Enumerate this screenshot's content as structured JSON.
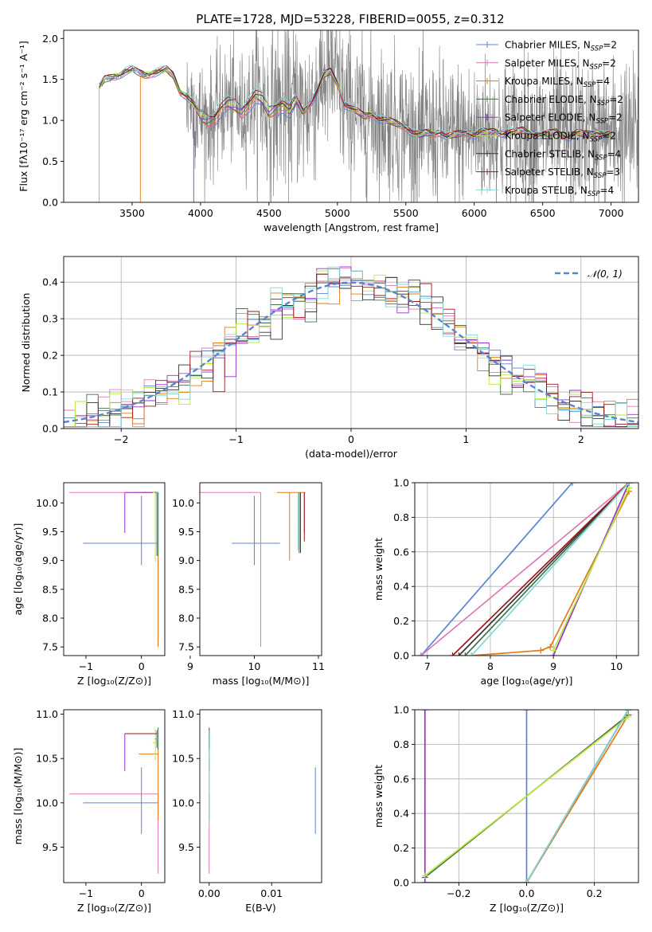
{
  "figure": {
    "title": "PLATE=1728, MJD=53228, FIBERID=0055, z=0.312"
  },
  "models": [
    {
      "key": "chab_miles",
      "name": "Chabrier MILES",
      "nssp": "2",
      "color": "#5a84d2"
    },
    {
      "key": "salp_miles",
      "name": "Salpeter MILES",
      "nssp": "2",
      "color": "#e079b8"
    },
    {
      "key": "krou_miles",
      "name": "Kroupa MILES",
      "nssp": "4",
      "color": "#e37b14"
    },
    {
      "key": "chab_elodie",
      "name": "Chabrier ELODIE",
      "nssp": "2",
      "color": "#4a6e4a"
    },
    {
      "key": "salp_elodie",
      "name": "Salpeter ELODIE",
      "nssp": "2",
      "color": "#9932cc"
    },
    {
      "key": "krou_elodie",
      "name": "Kroupa ELODIE",
      "nssp": "2",
      "color": "#b7e83e"
    },
    {
      "key": "chab_stelib",
      "name": "Chabrier STELIB",
      "nssp": "4",
      "color": "#333333"
    },
    {
      "key": "salp_stelib",
      "name": "Salpeter STELIB",
      "nssp": "3",
      "color": "#a0161c"
    },
    {
      "key": "krou_stelib",
      "name": "Kroupa STELIB",
      "nssp": "4",
      "color": "#7fd8d8"
    }
  ],
  "chart_data": [
    {
      "id": "spectrum",
      "type": "line",
      "title": "PLATE=1728, MJD=53228, FIBERID=0055, z=0.312",
      "xlabel": "wavelength [Angstrom, rest frame]",
      "ylabel": "Flux [fλ10⁻¹⁷ erg cm⁻² s⁻¹ A⁻¹]",
      "xlim": [
        3000,
        7200
      ],
      "ylim": [
        0,
        2.1
      ],
      "xticks": [
        3500,
        4000,
        4500,
        5000,
        5500,
        6000,
        6500,
        7000
      ],
      "yticks": [
        0.0,
        0.5,
        1.0,
        1.5,
        2.0
      ],
      "grid": false,
      "legend": "upper-right",
      "data_color": "#808080",
      "model_x": [
        3260,
        3300,
        3400,
        3450,
        3500,
        3550,
        3600,
        3650,
        3700,
        3750,
        3800,
        3850,
        3900,
        3950,
        4000,
        4050,
        4100,
        4150,
        4200,
        4250,
        4300,
        4350,
        4400,
        4450,
        4500,
        4550,
        4600,
        4650,
        4700,
        4750,
        4800,
        4850,
        4900,
        4950,
        5000,
        5050,
        5100,
        5150,
        5200,
        5250,
        5300,
        5350,
        5400,
        5450,
        5500,
        5550,
        5600,
        5650,
        5700,
        5750,
        5800,
        5850,
        5900,
        5950,
        6000,
        6050,
        6100,
        6150,
        6200,
        6250,
        6300,
        6350,
        6400,
        6450,
        6500,
        6550,
        6600,
        6650,
        6700,
        6750,
        6800,
        6850,
        6900,
        6950,
        7000
      ],
      "model_y": [
        1.4,
        1.5,
        1.55,
        1.6,
        1.62,
        1.58,
        1.55,
        1.58,
        1.6,
        1.62,
        1.55,
        1.35,
        1.3,
        1.2,
        1.05,
        1.0,
        1.02,
        1.15,
        1.2,
        1.18,
        1.1,
        1.2,
        1.3,
        1.25,
        1.1,
        1.15,
        1.2,
        1.1,
        1.25,
        1.1,
        1.2,
        1.35,
        1.55,
        1.6,
        1.45,
        1.2,
        1.15,
        1.1,
        1.05,
        1.08,
        1.02,
        1.0,
        0.98,
        0.95,
        0.92,
        0.85,
        0.82,
        0.85,
        0.83,
        0.86,
        0.8,
        0.82,
        0.84,
        0.85,
        0.82,
        0.86,
        0.85,
        0.87,
        0.84,
        0.86,
        0.85,
        0.88,
        0.85,
        0.83,
        0.82,
        0.84,
        0.86,
        0.82,
        0.8,
        0.85,
        0.83,
        0.84,
        0.86,
        0.82,
        0.83
      ]
    },
    {
      "id": "residuals",
      "type": "histogram",
      "xlabel": "(data-model)/error",
      "ylabel": "Normed distribution",
      "xlim": [
        -2.5,
        2.5
      ],
      "ylim": [
        0,
        0.47
      ],
      "xticks": [
        -2,
        -1,
        0,
        1,
        2
      ],
      "yticks": [
        0.0,
        0.1,
        0.2,
        0.3,
        0.4
      ],
      "grid": true,
      "bin_width": 0.1,
      "legend": "upper-right",
      "reference": {
        "label": "𝒩(0, 1)",
        "mean": 0,
        "sigma": 1,
        "color": "#5a84d2"
      }
    },
    {
      "id": "age-vs-Z",
      "type": "errorbar",
      "xlabel": "Z [log₁₀(Z/Z⊙)]",
      "ylabel": "age  [log₁₀(age/yr)]",
      "xlim": [
        -1.4,
        0.42
      ],
      "ylim": [
        7.35,
        10.35
      ],
      "xticks": [
        -1,
        0
      ],
      "yticks": [
        7.5,
        8.0,
        8.5,
        9.0,
        9.5,
        10.0
      ],
      "grid": false,
      "points": [
        {
          "model": "chab_miles",
          "x": 0.0,
          "xerr": [
            1.05,
            0.3
          ],
          "y": 9.3,
          "yerr": [
            0.38,
            0.82
          ]
        },
        {
          "model": "salp_miles",
          "x": 0.3,
          "xerr": [
            1.6,
            0.0
          ],
          "y": 10.18,
          "yerr": [
            2.68,
            0.0
          ]
        },
        {
          "model": "krou_miles",
          "x": 0.3,
          "xerr": [
            0.35,
            0.0
          ],
          "y": 10.18,
          "yerr": [
            2.68,
            0.0
          ]
        },
        {
          "model": "chab_elodie",
          "x": 0.3,
          "xerr": [
            0.02,
            0.0
          ],
          "y": 10.18,
          "yerr": [
            1.1,
            0.0
          ]
        },
        {
          "model": "salp_elodie",
          "x": -0.3,
          "xerr": [
            0.0,
            0.6
          ],
          "y": 10.18,
          "yerr": [
            0.7,
            0.0
          ]
        },
        {
          "model": "krou_elodie",
          "x": 0.25,
          "xerr": [
            0.05,
            0.05
          ],
          "y": 10.18,
          "yerr": [
            1.2,
            0.0
          ]
        },
        {
          "model": "chab_stelib",
          "x": 0.28,
          "xerr": [
            0.03,
            0.02
          ],
          "y": 10.18,
          "yerr": [
            1.1,
            0.0
          ]
        },
        {
          "model": "salp_stelib",
          "x": 0.3,
          "xerr": [
            0.05,
            0.0
          ],
          "y": 10.18,
          "yerr": [
            0.0,
            0.0
          ]
        },
        {
          "model": "krou_stelib",
          "x": 0.29,
          "xerr": [
            0.03,
            0.01
          ],
          "y": 10.18,
          "yerr": [
            1.1,
            0.0
          ]
        }
      ]
    },
    {
      "id": "age-vs-mass",
      "type": "errorbar",
      "xlabel": "mass [log₁₀(M/M⊙)]",
      "ylabel": "",
      "xlim": [
        9.15,
        11.05
      ],
      "ylim": [
        7.35,
        10.35
      ],
      "xticks": [
        9,
        10,
        11
      ],
      "yticks": [
        7.5,
        8.0,
        8.5,
        9.0,
        9.5,
        10.0
      ],
      "grid": false,
      "points": [
        {
          "model": "chab_miles",
          "x": 10.0,
          "xerr": [
            0.35,
            0.4
          ],
          "y": 9.3,
          "yerr": [
            0.38,
            0.82
          ]
        },
        {
          "model": "salp_miles",
          "x": 10.1,
          "xerr": [
            0.95,
            0.0
          ],
          "y": 10.18,
          "yerr": [
            2.68,
            0.0
          ]
        },
        {
          "model": "krou_miles",
          "x": 10.55,
          "xerr": [
            0.2,
            0.25
          ],
          "y": 10.18,
          "yerr": [
            1.18,
            0.0
          ]
        },
        {
          "model": "chab_elodie",
          "x": 10.7,
          "xerr": [
            0.0,
            0.0
          ],
          "y": 10.18,
          "yerr": [
            1.05,
            0.0
          ]
        },
        {
          "model": "salp_elodie",
          "x": 10.78,
          "xerr": [
            0.0,
            0.0
          ],
          "y": 10.18,
          "yerr": [
            0.7,
            0.0
          ]
        },
        {
          "model": "krou_elodie",
          "x": 10.72,
          "xerr": [
            0.0,
            0.0
          ],
          "y": 10.18,
          "yerr": [
            1.0,
            0.0
          ]
        },
        {
          "model": "chab_stelib",
          "x": 10.72,
          "xerr": [
            0.0,
            0.0
          ],
          "y": 10.18,
          "yerr": [
            1.05,
            0.0
          ]
        },
        {
          "model": "salp_stelib",
          "x": 10.78,
          "xerr": [
            0.0,
            0.0
          ],
          "y": 10.18,
          "yerr": [
            0.85,
            0.0
          ]
        },
        {
          "model": "krou_stelib",
          "x": 10.68,
          "xerr": [
            0.0,
            0.0
          ],
          "y": 10.18,
          "yerr": [
            1.0,
            0.0
          ]
        }
      ]
    },
    {
      "id": "weight-vs-age",
      "type": "line",
      "xlabel": "age  [log₁₀(age/yr)]",
      "ylabel": "mass weight",
      "xlim": [
        6.8,
        10.35
      ],
      "ylim": [
        0,
        1
      ],
      "xticks": [
        7,
        8,
        9,
        10
      ],
      "yticks": [
        0.0,
        0.2,
        0.4,
        0.6,
        0.8,
        1.0
      ],
      "grid": true,
      "series": [
        {
          "model": "chab_miles",
          "x": [
            6.9,
            9.3
          ],
          "y": [
            0.0,
            1.0
          ]
        },
        {
          "model": "salp_miles",
          "x": [
            6.9,
            10.2
          ],
          "y": [
            0.0,
            1.0
          ]
        },
        {
          "model": "krou_miles",
          "x": [
            7.7,
            8.8,
            8.95,
            10.2
          ],
          "y": [
            0.0,
            0.03,
            0.05,
            0.95
          ]
        },
        {
          "model": "chab_elodie",
          "x": [
            7.6,
            10.2
          ],
          "y": [
            0.0,
            1.0
          ]
        },
        {
          "model": "salp_elodie",
          "x": [
            9.0,
            10.2
          ],
          "y": [
            0.0,
            1.0
          ]
        },
        {
          "model": "krou_elodie",
          "x": [
            9.0,
            10.2
          ],
          "y": [
            0.03,
            0.97
          ]
        },
        {
          "model": "chab_stelib",
          "x": [
            7.5,
            10.2
          ],
          "y": [
            0.0,
            1.0
          ]
        },
        {
          "model": "salp_stelib",
          "x": [
            7.4,
            10.2
          ],
          "y": [
            0.0,
            1.0
          ]
        },
        {
          "model": "krou_stelib",
          "x": [
            7.7,
            10.2
          ],
          "y": [
            0.0,
            1.0
          ]
        }
      ]
    },
    {
      "id": "mass-vs-Z",
      "type": "errorbar",
      "xlabel": "Z [log₁₀(Z/Z⊙)]",
      "ylabel": "mass [log₁₀(M/M⊙)]",
      "xlim": [
        -1.4,
        0.42
      ],
      "ylim": [
        9.1,
        11.05
      ],
      "xticks": [
        -1,
        0
      ],
      "yticks": [
        9.5,
        10.0,
        10.5,
        11.0
      ],
      "grid": false,
      "points": [
        {
          "model": "chab_miles",
          "x": 0.0,
          "xerr": [
            1.05,
            0.3
          ],
          "y": 10.0,
          "yerr": [
            0.35,
            0.4
          ]
        },
        {
          "model": "salp_miles",
          "x": 0.3,
          "xerr": [
            1.6,
            0.0
          ],
          "y": 10.1,
          "yerr": [
            0.9,
            0.0
          ]
        },
        {
          "model": "krou_miles",
          "x": 0.3,
          "xerr": [
            0.35,
            0.0
          ],
          "y": 10.55,
          "yerr": [
            0.75,
            0.25
          ]
        },
        {
          "model": "chab_elodie",
          "x": 0.3,
          "xerr": [
            0.02,
            0.0
          ],
          "y": 10.7,
          "yerr": [
            0.1,
            0.15
          ]
        },
        {
          "model": "salp_elodie",
          "x": -0.3,
          "xerr": [
            0.0,
            0.6
          ],
          "y": 10.78,
          "yerr": [
            0.42,
            0.0
          ]
        },
        {
          "model": "krou_elodie",
          "x": 0.25,
          "xerr": [
            0.05,
            0.05
          ],
          "y": 10.68,
          "yerr": [
            0.2,
            0.15
          ]
        },
        {
          "model": "chab_stelib",
          "x": 0.28,
          "xerr": [
            0.03,
            0.02
          ],
          "y": 10.72,
          "yerr": [
            0.1,
            0.1
          ]
        },
        {
          "model": "salp_stelib",
          "x": 0.3,
          "xerr": [
            0.6,
            0.0
          ],
          "y": 10.78,
          "yerr": [
            0.0,
            0.0
          ]
        },
        {
          "model": "krou_stelib",
          "x": 0.29,
          "xerr": [
            0.03,
            0.01
          ],
          "y": 10.72,
          "yerr": [
            0.1,
            0.1
          ]
        }
      ]
    },
    {
      "id": "mass-vs-ebv",
      "type": "errorbar",
      "xlabel": "E(B-V)",
      "ylabel": "",
      "xlim": [
        -0.0015,
        0.018
      ],
      "ylim": [
        9.1,
        11.05
      ],
      "xticks": [
        0.0,
        0.01
      ],
      "yticks": [
        9.5,
        10.0,
        10.5,
        11.0
      ],
      "grid": false,
      "points": [
        {
          "model": "chab_miles",
          "x": 0.017,
          "xerr": [
            0,
            0
          ],
          "y": 10.0,
          "yerr": [
            0.35,
            0.4
          ]
        },
        {
          "model": "salp_miles",
          "x": 0.0,
          "xerr": [
            0,
            0
          ],
          "y": 10.1,
          "yerr": [
            0.9,
            0.0
          ]
        },
        {
          "model": "krou_miles",
          "x": 0.0,
          "xerr": [
            0,
            0
          ],
          "y": 10.55,
          "yerr": [
            0.75,
            0.25
          ]
        },
        {
          "model": "chab_elodie",
          "x": 0.0,
          "xerr": [
            0,
            0
          ],
          "y": 10.7,
          "yerr": [
            0.1,
            0.15
          ]
        },
        {
          "model": "salp_elodie",
          "x": 0.0,
          "xerr": [
            0,
            0
          ],
          "y": 10.78,
          "yerr": [
            0.42,
            0.0
          ]
        },
        {
          "model": "krou_elodie",
          "x": 0.0,
          "xerr": [
            0,
            0
          ],
          "y": 10.68,
          "yerr": [
            0.2,
            0.15
          ]
        },
        {
          "model": "chab_stelib",
          "x": 0.0,
          "xerr": [
            0,
            0
          ],
          "y": 10.72,
          "yerr": [
            0.1,
            0.1
          ]
        },
        {
          "model": "salp_stelib",
          "x": 0.0,
          "xerr": [
            0,
            0
          ],
          "y": 10.78,
          "yerr": [
            0.0,
            0.05
          ]
        },
        {
          "model": "krou_stelib",
          "x": 0.0,
          "xerr": [
            0,
            0
          ],
          "y": 10.72,
          "yerr": [
            0.95,
            0.1
          ]
        }
      ]
    },
    {
      "id": "weight-vs-Z",
      "type": "line",
      "xlabel": "Z [log₁₀(Z/Z⊙)]",
      "ylabel": "mass weight",
      "xlim": [
        -0.33,
        0.33
      ],
      "ylim": [
        0,
        1
      ],
      "xticks": [
        -0.2,
        0.0,
        0.2
      ],
      "yticks": [
        0.0,
        0.2,
        0.4,
        0.6,
        0.8,
        1.0
      ],
      "grid": true,
      "series": [
        {
          "model": "chab_miles",
          "x": [
            0.0,
            0.0
          ],
          "y": [
            0.0,
            1.0
          ]
        },
        {
          "model": "salp_miles",
          "x": [
            0.0,
            0.3
          ],
          "y": [
            0.0,
            1.0
          ]
        },
        {
          "model": "krou_miles",
          "x": [
            -0.3,
            0.0,
            0.3
          ],
          "y": [
            0.0,
            0.0,
            0.97
          ]
        },
        {
          "model": "chab_elodie",
          "x": [
            -0.3,
            0.3
          ],
          "y": [
            0.03,
            0.97
          ]
        },
        {
          "model": "salp_elodie",
          "x": [
            -0.3,
            -0.3
          ],
          "y": [
            0.0,
            1.0
          ]
        },
        {
          "model": "krou_elodie",
          "x": [
            -0.3,
            0.3
          ],
          "y": [
            0.04,
            0.96
          ]
        },
        {
          "model": "chab_stelib",
          "x": [
            0.0,
            0.3
          ],
          "y": [
            0.0,
            1.0
          ]
        },
        {
          "model": "salp_stelib",
          "x": [
            0.0,
            0.3
          ],
          "y": [
            0.0,
            1.0
          ]
        },
        {
          "model": "krou_stelib",
          "x": [
            0.0,
            0.3
          ],
          "y": [
            0.0,
            1.0
          ]
        }
      ]
    }
  ]
}
